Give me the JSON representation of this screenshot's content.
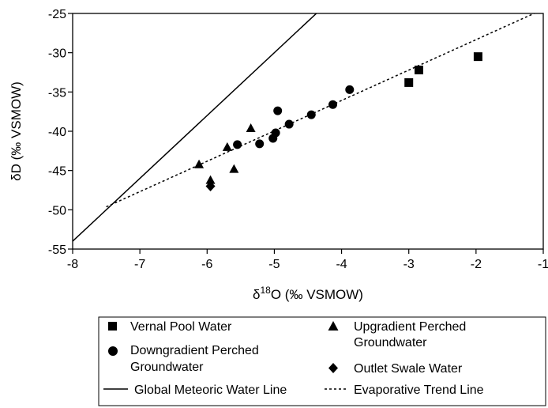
{
  "chart_data": {
    "type": "scatter",
    "xlabel": {
      "pre": "δ",
      "sup": "18",
      "post": "O (‰ VSMOW)"
    },
    "ylabel": "δD (‰ VSMOW)",
    "xlim": [
      -8,
      -1
    ],
    "ylim": [
      -55,
      -25
    ],
    "xticks": [
      -8,
      -7,
      -6,
      -5,
      -4,
      -3,
      -2,
      -1
    ],
    "yticks": [
      -55,
      -50,
      -45,
      -40,
      -35,
      -30,
      -25
    ],
    "grid": false,
    "legend_position": "bottom",
    "series": [
      {
        "name": "Vernal Pool Water",
        "marker": "square",
        "x": [
          -3.0,
          -2.85,
          -1.97
        ],
        "y": [
          -33.8,
          -32.2,
          -30.5
        ]
      },
      {
        "name": "Upgradient Perched Groundwater",
        "marker": "triangle",
        "x": [
          -6.12,
          -5.95,
          -5.7,
          -5.6,
          -5.35
        ],
        "y": [
          -44.2,
          -46.2,
          -42.0,
          -44.8,
          -39.6
        ]
      },
      {
        "name": "Downgradient Perched Groundwater",
        "marker": "circle",
        "x": [
          -5.55,
          -5.22,
          -5.02,
          -4.98,
          -4.95,
          -4.78,
          -4.45,
          -4.13,
          -3.88
        ],
        "y": [
          -41.7,
          -41.6,
          -40.9,
          -40.2,
          -37.4,
          -39.1,
          -37.9,
          -36.6,
          -34.7
        ]
      },
      {
        "name": "Outlet Swale Water",
        "marker": "diamond",
        "x": [
          -5.95
        ],
        "y": [
          -47.0
        ]
      }
    ],
    "lines": [
      {
        "name": "Global Meteoric Water Line",
        "style": "solid",
        "slope": 8,
        "intercept": 10
      },
      {
        "name": "Evaporative Trend Line",
        "style": "dashed",
        "slope": 3.87,
        "intercept": -20.6,
        "x_from": -7.5
      }
    ]
  }
}
